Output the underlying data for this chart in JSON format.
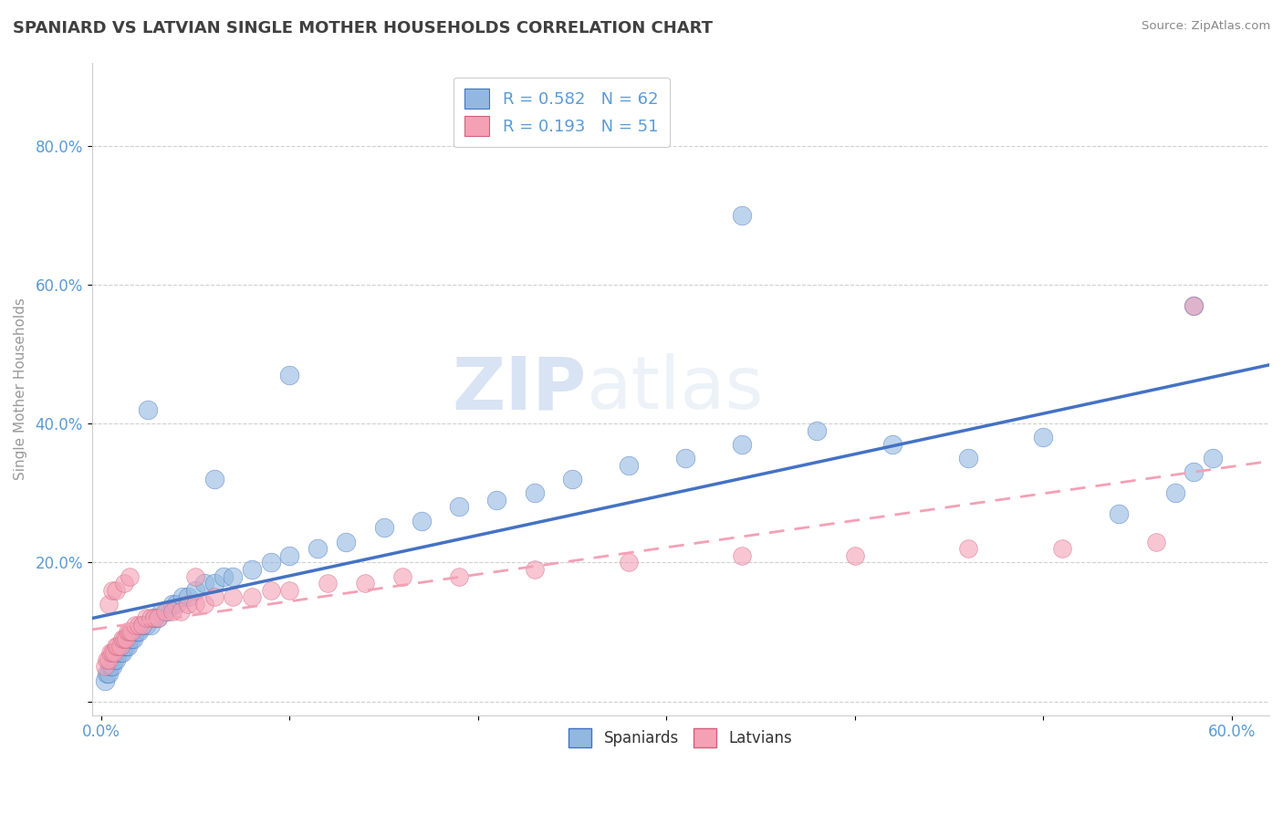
{
  "title": "SPANIARD VS LATVIAN SINGLE MOTHER HOUSEHOLDS CORRELATION CHART",
  "source": "Source: ZipAtlas.com",
  "ylabel": "Single Mother Households",
  "ytick_labels": [
    "",
    "20.0%",
    "40.0%",
    "60.0%",
    "80.0%"
  ],
  "ytick_values": [
    0.0,
    0.2,
    0.4,
    0.6,
    0.8
  ],
  "xlim": [
    -0.005,
    0.62
  ],
  "ylim": [
    -0.02,
    0.92
  ],
  "legend_r_spaniard": "0.582",
  "legend_n_spaniard": "62",
  "legend_r_latvian": "0.193",
  "legend_n_latvian": "51",
  "color_spaniard": "#92b8e0",
  "color_latvian": "#f4a0b5",
  "color_trend_spaniard": "#4472c4",
  "color_trend_latvian": "#f4a0b5",
  "watermark_zip": "ZIP",
  "watermark_atlas": "atlas",
  "background_color": "#ffffff",
  "grid_color": "#d0d0d0",
  "title_color": "#404040",
  "axis_label_color": "#5b9bd5",
  "spaniard_x": [
    0.002,
    0.003,
    0.004,
    0.005,
    0.006,
    0.007,
    0.008,
    0.009,
    0.01,
    0.011,
    0.012,
    0.013,
    0.014,
    0.015,
    0.016,
    0.017,
    0.018,
    0.019,
    0.02,
    0.022,
    0.024,
    0.026,
    0.028,
    0.03,
    0.032,
    0.035,
    0.038,
    0.04,
    0.043,
    0.046,
    0.05,
    0.055,
    0.06,
    0.065,
    0.07,
    0.08,
    0.09,
    0.1,
    0.115,
    0.13,
    0.15,
    0.17,
    0.19,
    0.21,
    0.23,
    0.25,
    0.28,
    0.31,
    0.34,
    0.38,
    0.42,
    0.46,
    0.5,
    0.54,
    0.57,
    0.58,
    0.59,
    0.025,
    0.06,
    0.1,
    0.34,
    0.58
  ],
  "spaniard_y": [
    0.03,
    0.04,
    0.04,
    0.05,
    0.05,
    0.06,
    0.06,
    0.07,
    0.07,
    0.07,
    0.08,
    0.08,
    0.08,
    0.09,
    0.09,
    0.09,
    0.1,
    0.1,
    0.1,
    0.11,
    0.11,
    0.11,
    0.12,
    0.12,
    0.13,
    0.13,
    0.14,
    0.14,
    0.15,
    0.15,
    0.16,
    0.17,
    0.17,
    0.18,
    0.18,
    0.19,
    0.2,
    0.21,
    0.22,
    0.23,
    0.25,
    0.26,
    0.28,
    0.29,
    0.3,
    0.32,
    0.34,
    0.35,
    0.37,
    0.39,
    0.37,
    0.35,
    0.38,
    0.27,
    0.3,
    0.33,
    0.35,
    0.42,
    0.32,
    0.47,
    0.7,
    0.57
  ],
  "latvian_x": [
    0.002,
    0.003,
    0.004,
    0.005,
    0.006,
    0.007,
    0.008,
    0.009,
    0.01,
    0.011,
    0.012,
    0.013,
    0.014,
    0.015,
    0.016,
    0.018,
    0.02,
    0.022,
    0.024,
    0.026,
    0.028,
    0.03,
    0.034,
    0.038,
    0.042,
    0.046,
    0.05,
    0.055,
    0.06,
    0.07,
    0.08,
    0.09,
    0.1,
    0.12,
    0.14,
    0.16,
    0.19,
    0.23,
    0.28,
    0.34,
    0.4,
    0.46,
    0.51,
    0.56,
    0.58,
    0.004,
    0.006,
    0.008,
    0.012,
    0.015,
    0.05
  ],
  "latvian_y": [
    0.05,
    0.06,
    0.06,
    0.07,
    0.07,
    0.07,
    0.08,
    0.08,
    0.08,
    0.09,
    0.09,
    0.09,
    0.1,
    0.1,
    0.1,
    0.11,
    0.11,
    0.11,
    0.12,
    0.12,
    0.12,
    0.12,
    0.13,
    0.13,
    0.13,
    0.14,
    0.14,
    0.14,
    0.15,
    0.15,
    0.15,
    0.16,
    0.16,
    0.17,
    0.17,
    0.18,
    0.18,
    0.19,
    0.2,
    0.21,
    0.21,
    0.22,
    0.22,
    0.23,
    0.57,
    0.14,
    0.16,
    0.16,
    0.17,
    0.18,
    0.18
  ]
}
